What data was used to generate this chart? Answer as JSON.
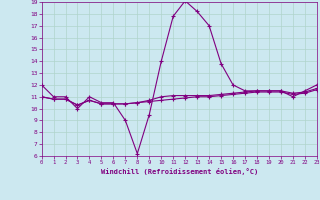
{
  "xlabel": "Windchill (Refroidissement éolien,°C)",
  "xlim": [
    0,
    23
  ],
  "ylim": [
    6,
    19
  ],
  "xticks": [
    0,
    1,
    2,
    3,
    4,
    5,
    6,
    7,
    8,
    9,
    10,
    11,
    12,
    13,
    14,
    15,
    16,
    17,
    18,
    19,
    20,
    21,
    22,
    23
  ],
  "yticks": [
    6,
    7,
    8,
    9,
    10,
    11,
    12,
    13,
    14,
    15,
    16,
    17,
    18,
    19
  ],
  "background_color": "#cce8f0",
  "line_color": "#800080",
  "grid_color": "#b0d4cc",
  "line1_x": [
    0,
    1,
    2,
    3,
    4,
    5,
    6,
    7,
    8,
    9,
    10,
    11,
    12,
    13,
    14,
    15,
    16,
    17,
    18,
    19,
    20,
    21,
    22,
    23
  ],
  "line1_y": [
    12,
    11,
    11,
    10,
    11,
    10.5,
    10.5,
    9,
    6.2,
    9.5,
    14,
    17.8,
    19.1,
    18.2,
    17,
    13.8,
    12,
    11.5,
    11.5,
    11.5,
    11.5,
    11,
    11.5,
    12
  ],
  "line2_x": [
    0,
    1,
    2,
    3,
    4,
    5,
    6,
    7,
    8,
    9,
    10,
    11,
    12,
    13,
    14,
    15,
    16,
    17,
    18,
    19,
    20,
    21,
    22,
    23
  ],
  "line2_y": [
    11.0,
    10.8,
    10.8,
    10.3,
    10.7,
    10.4,
    10.4,
    10.4,
    10.5,
    10.7,
    11.0,
    11.1,
    11.1,
    11.1,
    11.1,
    11.2,
    11.3,
    11.4,
    11.5,
    11.5,
    11.5,
    11.3,
    11.4,
    11.7
  ],
  "line3_x": [
    0,
    1,
    2,
    3,
    4,
    5,
    6,
    7,
    8,
    9,
    10,
    11,
    12,
    13,
    14,
    15,
    16,
    17,
    18,
    19,
    20,
    21,
    22,
    23
  ],
  "line3_y": [
    11.0,
    10.8,
    10.8,
    10.3,
    10.7,
    10.4,
    10.4,
    10.4,
    10.5,
    10.6,
    10.7,
    10.8,
    10.9,
    11.0,
    11.0,
    11.1,
    11.2,
    11.3,
    11.4,
    11.4,
    11.4,
    11.2,
    11.3,
    11.6
  ]
}
